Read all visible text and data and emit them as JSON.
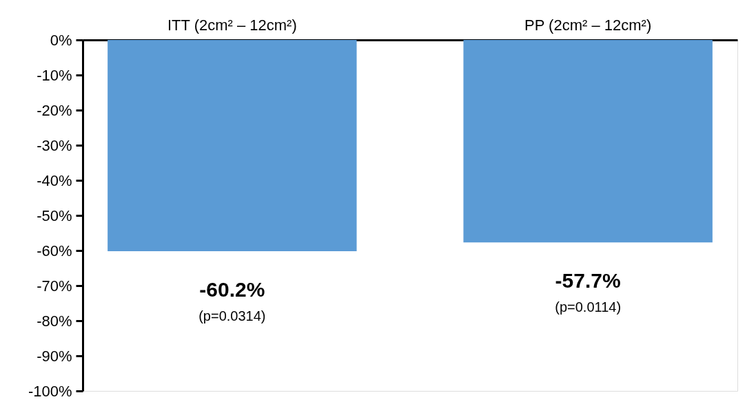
{
  "chart_data": {
    "type": "bar",
    "categories": [
      "ITT (2cm² – 12cm²)",
      "PP (2cm² – 12cm²)"
    ],
    "values": [
      -60.2,
      -57.7
    ],
    "color": "#5b9bd5",
    "value_labels": [
      "-60.2%",
      "-57.7%"
    ],
    "annotations": [
      "(p=0.0314)",
      "(p=0.0114)"
    ],
    "ylim": [
      -100,
      0
    ],
    "yticks": [
      {
        "value": 0,
        "label": "0%"
      },
      {
        "value": -10,
        "label": "-10%"
      },
      {
        "value": -20,
        "label": "-20%"
      },
      {
        "value": -30,
        "label": "-30%"
      },
      {
        "value": -40,
        "label": "-40%"
      },
      {
        "value": -50,
        "label": "-50%"
      },
      {
        "value": -60,
        "label": "-60%"
      },
      {
        "value": -70,
        "label": "-70%"
      },
      {
        "value": -80,
        "label": "-80%"
      },
      {
        "value": -90,
        "label": "-90%"
      },
      {
        "value": -100,
        "label": "-100%"
      }
    ],
    "grid": false
  }
}
